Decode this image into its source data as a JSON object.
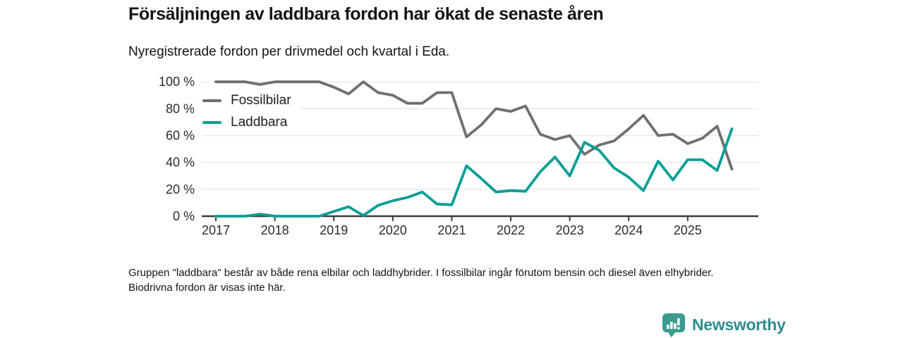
{
  "header": {
    "title": "Försäljningen av laddbara fordon har ökat de senaste åren",
    "subtitle": "Nyregistrerade fordon per drivmedel och kvartal i Eda."
  },
  "chart_data": {
    "type": "line",
    "title": "Försäljningen av laddbara fordon har ökat de senaste åren",
    "subtitle": "Nyregistrerade fordon per drivmedel och kvartal i Eda.",
    "x_unit": "quarter",
    "x": [
      "2017 Q1",
      "2017 Q2",
      "2017 Q3",
      "2017 Q4",
      "2018 Q1",
      "2018 Q2",
      "2018 Q3",
      "2018 Q4",
      "2019 Q1",
      "2019 Q2",
      "2019 Q3",
      "2019 Q4",
      "2020 Q1",
      "2020 Q2",
      "2020 Q3",
      "2020 Q4",
      "2021 Q1",
      "2021 Q2",
      "2021 Q3",
      "2021 Q4",
      "2022 Q1",
      "2022 Q2",
      "2022 Q3",
      "2022 Q4",
      "2023 Q1",
      "2023 Q2",
      "2023 Q3",
      "2023 Q4",
      "2024 Q1",
      "2024 Q2",
      "2024 Q3",
      "2024 Q4",
      "2025 Q1",
      "2025 Q2",
      "2025 Q3",
      "2025 Q4"
    ],
    "x_tick_labels": [
      "2017",
      "2018",
      "2019",
      "2020",
      "2021",
      "2022",
      "2023",
      "2024",
      "2025"
    ],
    "series": [
      {
        "name": "Fossilbilar",
        "color": "#6f6f6f",
        "values": [
          100,
          100,
          100,
          98,
          100,
          100,
          100,
          100,
          96,
          91,
          100,
          92,
          90,
          84,
          84,
          92,
          92,
          59,
          68,
          80,
          78,
          82,
          61,
          57,
          60,
          46,
          53,
          56,
          65,
          75,
          60,
          61,
          54,
          58,
          67,
          35
        ]
      },
      {
        "name": "Laddbara",
        "color": "#089e94",
        "values": [
          0,
          0,
          0,
          1.5,
          0,
          0,
          0,
          0,
          3.5,
          7,
          0.5,
          8,
          11.5,
          14,
          18,
          9,
          8.5,
          37.5,
          28,
          18,
          19,
          18.5,
          33,
          44,
          30,
          55,
          49,
          36,
          29,
          19,
          41,
          27,
          42,
          42,
          34,
          65
        ]
      }
    ],
    "ylim": [
      0,
      100
    ],
    "yticks": [
      0,
      20,
      40,
      60,
      80,
      100
    ],
    "ytick_format": "{v} %",
    "grid": "horizontal",
    "legend_position": "top-left-inside"
  },
  "footer": {
    "note": "Gruppen \"laddbara\" består av både rena elbilar och laddhybrider. I fossilbilar ingår förutom bensin och diesel även elhybrider. Biodrivna fordon är visas inte här.",
    "brand": "Newsworthy"
  },
  "colors": {
    "axis": "#3c3c3c",
    "grid": "#e8e8e8",
    "tick_label": "#2b2b2b",
    "brand_text_teal": "#2e8d8e",
    "brand_icon_teal": "#3a9b8e"
  }
}
